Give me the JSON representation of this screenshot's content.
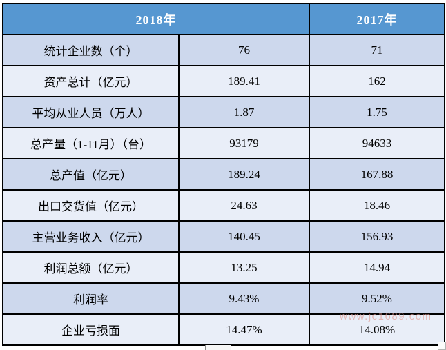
{
  "colors": {
    "header_bg": "#5697d1",
    "header_text": "#ffffff",
    "row_dark": "#cdd8ed",
    "row_light": "#e9eef8",
    "border": "#000000",
    "body_text": "#000000",
    "watermark_text": "#e09a92"
  },
  "watermark": {
    "text": "www.jc1689.com"
  },
  "table": {
    "header": {
      "y2018": "2018年",
      "y2017": "2017年"
    },
    "rows": [
      {
        "label": "统计企业数（个）",
        "y2018": "76",
        "y2017": "71"
      },
      {
        "label": "资产总计（亿元）",
        "y2018": "189.41",
        "y2017": "162"
      },
      {
        "label": "平均从业人员（万人）",
        "y2018": "1.87",
        "y2017": "1.75"
      },
      {
        "label": "总产量（1-11月）（台）",
        "y2018": "93179",
        "y2017": "94633"
      },
      {
        "label": "总产值（亿元）",
        "y2018": "189.24",
        "y2017": "167.88"
      },
      {
        "label": "出口交货值（亿元）",
        "y2018": "24.63",
        "y2017": "18.46"
      },
      {
        "label": "主营业务收入（亿元）",
        "y2018": "140.45",
        "y2017": "156.93"
      },
      {
        "label": "利润总额（亿元）",
        "y2018": "13.25",
        "y2017": "14.94"
      },
      {
        "label": "利润率",
        "y2018": "9.43%",
        "y2017": "9.52%"
      },
      {
        "label": "企业亏损面",
        "y2018": "14.47%",
        "y2017": "14.08%"
      }
    ]
  },
  "chart_data": {
    "type": "table",
    "title": "",
    "categories": [
      "统计企业数（个）",
      "资产总计（亿元）",
      "平均从业人员（万人）",
      "总产量（1-11月）（台）",
      "总产值（亿元）",
      "出口交货值（亿元）",
      "主营业务收入（亿元）",
      "利润总额（亿元）",
      "利润率",
      "企业亏损面"
    ],
    "series": [
      {
        "name": "2018年",
        "values": [
          76,
          189.41,
          1.87,
          93179,
          189.24,
          24.63,
          140.45,
          13.25,
          "9.43%",
          "14.47%"
        ]
      },
      {
        "name": "2017年",
        "values": [
          71,
          162,
          1.75,
          94633,
          167.88,
          18.46,
          156.93,
          14.94,
          "9.52%",
          "14.08%"
        ]
      }
    ],
    "layout": {
      "header_2018_spans_columns": 2,
      "row_shading": "alternating",
      "grid": true
    }
  }
}
